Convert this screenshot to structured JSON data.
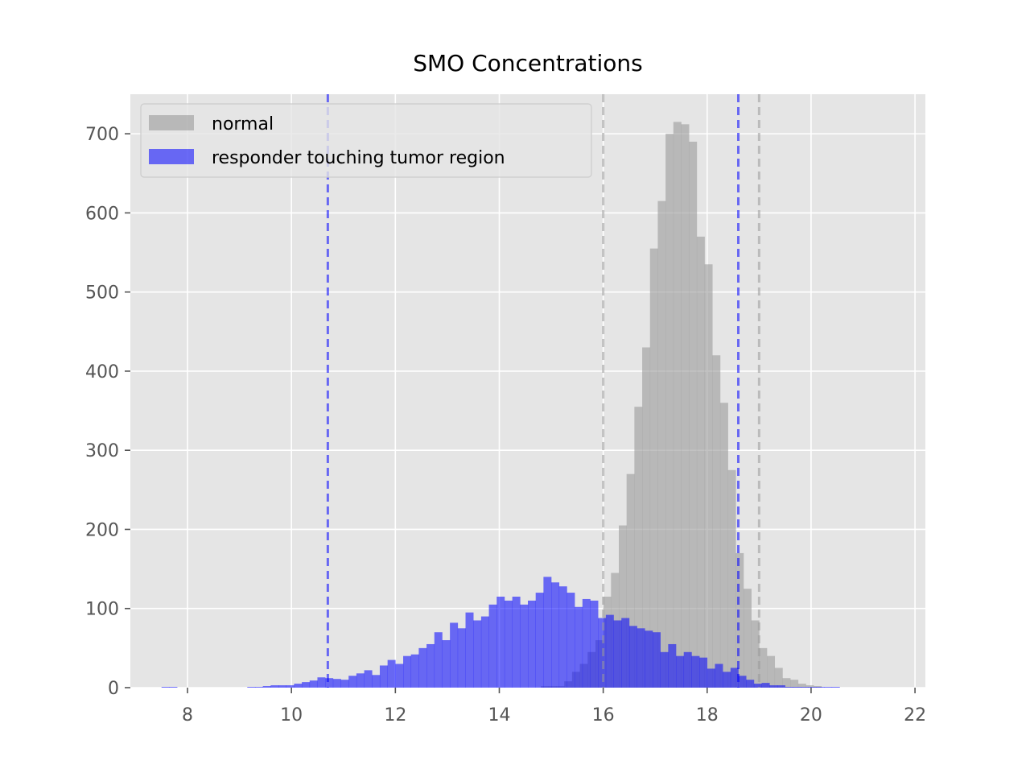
{
  "chart_data": {
    "type": "bar",
    "title": "SMO Concentrations",
    "xlabel": "",
    "ylabel": "",
    "xlim": [
      6.9,
      22.2
    ],
    "ylim": [
      0,
      750
    ],
    "xticks": [
      8,
      10,
      12,
      14,
      16,
      18,
      20,
      22
    ],
    "yticks": [
      0,
      100,
      200,
      300,
      400,
      500,
      600,
      700
    ],
    "grid": true,
    "legend_position": "upper-left",
    "series": [
      {
        "name": "normal",
        "color": "#999999",
        "alpha": 0.6,
        "bin_width": 0.15,
        "bin_start": 14.8,
        "values": [
          2,
          2,
          2,
          8,
          20,
          30,
          45,
          60,
          115,
          145,
          205,
          270,
          355,
          430,
          555,
          615,
          700,
          715,
          712,
          690,
          570,
          535,
          420,
          360,
          275,
          170,
          125,
          85,
          50,
          40,
          25,
          12,
          10,
          5,
          3,
          2
        ]
      },
      {
        "name": "responder touching tumor region",
        "color": "#0000ff",
        "alpha": 0.55,
        "bin_width": 0.15,
        "bin_start": 7.5,
        "values": [
          1,
          1,
          0,
          0,
          0,
          0,
          0,
          0,
          0,
          0,
          0,
          1,
          1,
          2,
          3,
          3,
          3,
          5,
          7,
          9,
          13,
          12,
          11,
          10,
          15,
          18,
          22,
          16,
          28,
          35,
          30,
          40,
          42,
          50,
          55,
          70,
          60,
          82,
          75,
          95,
          85,
          90,
          105,
          115,
          110,
          115,
          105,
          110,
          120,
          140,
          133,
          128,
          120,
          102,
          112,
          110,
          88,
          92,
          85,
          88,
          78,
          75,
          72,
          70,
          45,
          55,
          40,
          45,
          40,
          38,
          24,
          30,
          20,
          25,
          15,
          10,
          5,
          6,
          3,
          3,
          1,
          1,
          1,
          1,
          1,
          1,
          1
        ]
      }
    ],
    "vlines": [
      {
        "x": 10.7,
        "color": "#0000ff"
      },
      {
        "x": 16.0,
        "color": "#999999"
      },
      {
        "x": 18.6,
        "color": "#0000ff"
      },
      {
        "x": 19.0,
        "color": "#999999"
      }
    ]
  }
}
